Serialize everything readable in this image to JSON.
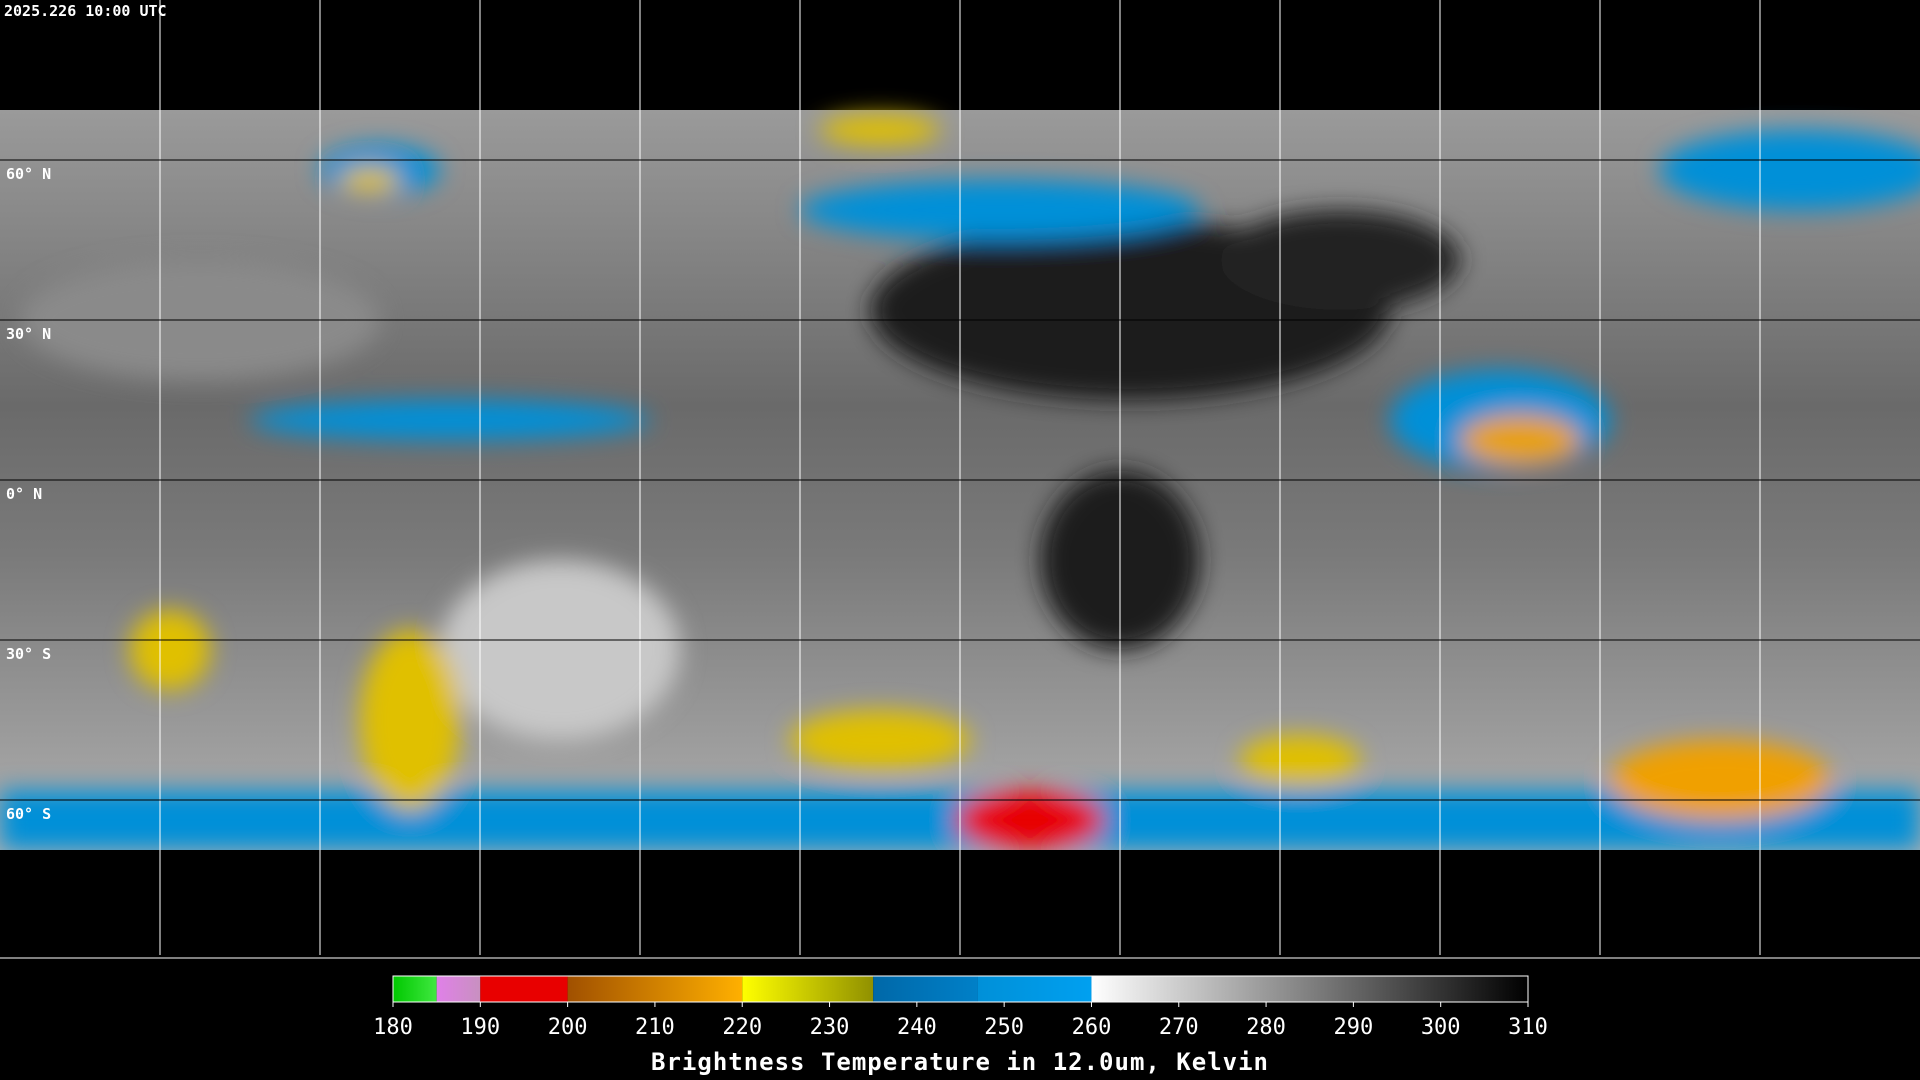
{
  "header": {
    "timestamp": "2025.226 10:00 UTC"
  },
  "map": {
    "latitude_labels": [
      "60° N",
      "30° N",
      "0° N",
      "30° S",
      "60° S"
    ]
  },
  "colorbar": {
    "title": "Brightness Temperature in 12.0um, Kelvin",
    "lim": [
      180,
      310
    ],
    "ticks": [
      180,
      190,
      200,
      210,
      220,
      230,
      240,
      250,
      260,
      270,
      280,
      290,
      300,
      310
    ],
    "segments": [
      {
        "from": 180,
        "to": 185,
        "colors": [
          "#00c800",
          "#40e840"
        ]
      },
      {
        "from": 185,
        "to": 190,
        "colors": [
          "#e080e8",
          "#c890c0"
        ]
      },
      {
        "from": 190,
        "to": 200,
        "colors": [
          "#e80000",
          "#e80000"
        ]
      },
      {
        "from": 200,
        "to": 220,
        "colors": [
          "#a05000",
          "#ffb000"
        ]
      },
      {
        "from": 220,
        "to": 235,
        "colors": [
          "#ffff00",
          "#909000"
        ]
      },
      {
        "from": 235,
        "to": 247,
        "colors": [
          "#0068a8",
          "#0080c8"
        ]
      },
      {
        "from": 247,
        "to": 260,
        "colors": [
          "#0090d8",
          "#00a0f0"
        ]
      },
      {
        "from": 260,
        "to": 310,
        "colors": [
          "#ffffff",
          "#000000"
        ]
      }
    ]
  }
}
